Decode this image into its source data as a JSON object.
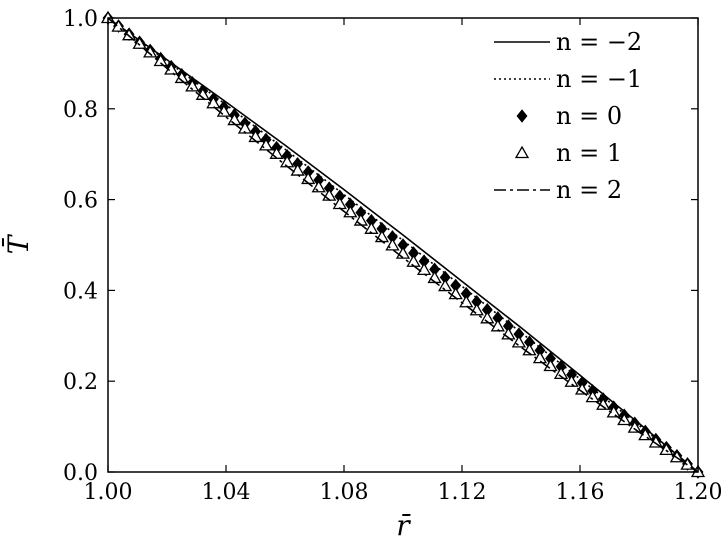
{
  "chart_data": {
    "type": "line",
    "title": "",
    "xlabel": "r̄",
    "ylabel": "T̄",
    "xlim": [
      1.0,
      1.2
    ],
    "ylim": [
      0.0,
      1.0
    ],
    "x_ticks": [
      1.0,
      1.04,
      1.08,
      1.12,
      1.16,
      1.2
    ],
    "x_tick_labels": [
      "1.00",
      "1.04",
      "1.08",
      "1.12",
      "1.16",
      "1.20"
    ],
    "y_ticks": [
      0.0,
      0.2,
      0.4,
      0.6,
      0.8,
      1.0
    ],
    "y_tick_labels": [
      "0.0",
      "0.2",
      "0.4",
      "0.6",
      "0.8",
      "1.0"
    ],
    "grid": false,
    "legend_position": "top-right",
    "x": [
      1.0,
      1.02,
      1.04,
      1.06,
      1.08,
      1.1,
      1.12,
      1.14,
      1.16,
      1.18,
      1.2
    ],
    "series": [
      {
        "name": "n = −2",
        "style": "solid",
        "values": [
          1.0,
          0.908,
          0.815,
          0.72,
          0.622,
          0.522,
          0.42,
          0.318,
          0.213,
          0.107,
          0.0
        ]
      },
      {
        "name": "n = −1",
        "style": "dotted",
        "values": [
          1.0,
          0.905,
          0.809,
          0.711,
          0.611,
          0.51,
          0.409,
          0.307,
          0.205,
          0.103,
          0.0
        ]
      },
      {
        "name": "n = 0",
        "style": "diamond-filled",
        "values": [
          1.0,
          0.9,
          0.8,
          0.7,
          0.6,
          0.5,
          0.4,
          0.3,
          0.2,
          0.1,
          0.0
        ]
      },
      {
        "name": "n = 1",
        "style": "triangle-open",
        "values": [
          1.0,
          0.894,
          0.79,
          0.686,
          0.583,
          0.481,
          0.381,
          0.282,
          0.185,
          0.091,
          0.0
        ]
      },
      {
        "name": "n = 2",
        "style": "dashdot",
        "values": [
          1.0,
          0.889,
          0.782,
          0.677,
          0.574,
          0.472,
          0.373,
          0.275,
          0.18,
          0.088,
          0.0
        ]
      }
    ]
  }
}
